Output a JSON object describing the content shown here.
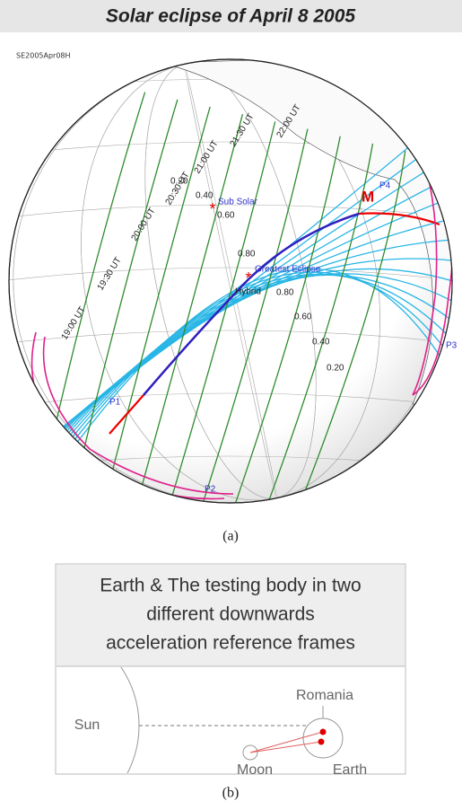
{
  "figure_a": {
    "title": "Solar eclipse of April 8 2005",
    "code": "SE2005Apr08H",
    "time_labels": [
      "19:00 UT",
      "19:30 UT",
      "20:00 UT",
      "20:30 UT",
      "21:00 UT",
      "21:30 UT",
      "22:00 UT"
    ],
    "magnitude_labels": [
      "0.20",
      "0.40",
      "0.60",
      "0.80",
      "0.80",
      "0.60",
      "0.40",
      "0.20"
    ],
    "sub_solar": "Sub Solar",
    "greatest_eclipse": "Greatest Eclipse",
    "hybrid": "Hybrid",
    "marker": "M",
    "points": [
      "P1",
      "P2",
      "P3",
      "P4"
    ],
    "caption": "(a)"
  },
  "figure_b": {
    "title_lines": [
      "Earth & The testing body in two",
      "different downwards",
      "acceleration reference frames"
    ],
    "sun": "Sun",
    "moon": "Moon",
    "earth": "Earth",
    "romania": "Romania",
    "caption": "(b)"
  }
}
